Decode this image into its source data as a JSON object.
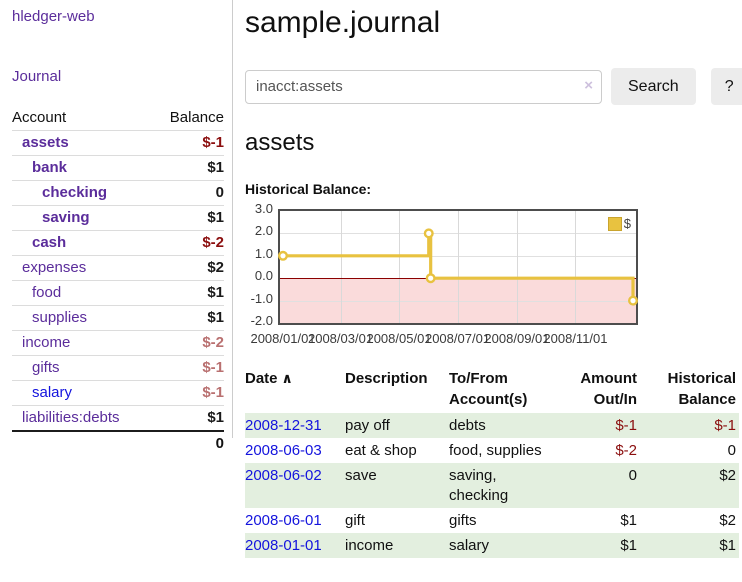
{
  "colors": {
    "link_purple": "#5b2d9b",
    "link_blue": "#1414dd",
    "negative_strong": "#8b0e0e",
    "negative_soft": "#b97070",
    "row_green": "#e3efdf",
    "series_gold": "#e8c240",
    "negative_region_pink": "#fadbdb",
    "zero_line_red": "#8b0000",
    "button_gray": "#ececec"
  },
  "sidebar": {
    "app_title": "hledger-web",
    "journal_link": "Journal",
    "table": {
      "account_header": "Account",
      "balance_header": "Balance",
      "rows": [
        {
          "name": "assets",
          "depth": 1,
          "bold": true,
          "balance": "$-1",
          "balance_color": "negative-strong",
          "link_color": "purple"
        },
        {
          "name": "bank",
          "depth": 2,
          "bold": true,
          "balance": "$1",
          "balance_color": "default",
          "link_color": "purple"
        },
        {
          "name": "checking",
          "depth": 3,
          "bold": true,
          "balance": "0",
          "balance_color": "default",
          "link_color": "purple"
        },
        {
          "name": "saving",
          "depth": 3,
          "bold": true,
          "balance": "$1",
          "balance_color": "default",
          "link_color": "purple"
        },
        {
          "name": "cash",
          "depth": 2,
          "bold": true,
          "balance": "$-2",
          "balance_color": "negative-strong",
          "link_color": "purple"
        },
        {
          "name": "expenses",
          "depth": 1,
          "bold": false,
          "balance": "$2",
          "balance_color": "default",
          "link_color": "purple"
        },
        {
          "name": "food",
          "depth": 2,
          "bold": false,
          "balance": "$1",
          "balance_color": "default",
          "link_color": "purple"
        },
        {
          "name": "supplies",
          "depth": 2,
          "bold": false,
          "balance": "$1",
          "balance_color": "default",
          "link_color": "purple"
        },
        {
          "name": "income",
          "depth": 1,
          "bold": false,
          "balance": "$-2",
          "balance_color": "negative-soft",
          "link_color": "purple"
        },
        {
          "name": "gifts",
          "depth": 2,
          "bold": false,
          "balance": "$-1",
          "balance_color": "negative-soft",
          "link_color": "purple"
        },
        {
          "name": "salary",
          "depth": 2,
          "bold": false,
          "balance": "$-1",
          "balance_color": "negative-soft",
          "link_color": "blue"
        },
        {
          "name": "liabilities:debts",
          "depth": 1,
          "bold": false,
          "balance": "$1",
          "balance_color": "default",
          "link_color": "purple"
        }
      ],
      "total": "0"
    }
  },
  "main": {
    "title": "sample.journal",
    "search": {
      "query": "inacct:assets",
      "clear_icon": "×",
      "search_button": "Search",
      "help_button": "?"
    },
    "account_heading": "assets",
    "chart_label": "Historical Balance:",
    "chart_data": {
      "type": "line",
      "step": true,
      "series": [
        {
          "name": "$",
          "color": "#e8c240",
          "points": [
            [
              "2008-01-01",
              1.0
            ],
            [
              "2008-06-01",
              2.0
            ],
            [
              "2008-06-03",
              0.0
            ],
            [
              "2008-12-31",
              -1.0
            ]
          ]
        }
      ],
      "xrange": [
        "2008-01-01",
        "2008-12-31"
      ],
      "ylim": [
        -2.0,
        3.0
      ],
      "y_ticks": [
        {
          "label": "3.0",
          "value": 3
        },
        {
          "label": "2.0",
          "value": 2
        },
        {
          "label": "1.0",
          "value": 1
        },
        {
          "label": "0.0",
          "value": 0
        },
        {
          "label": "-1.0",
          "value": -1
        },
        {
          "label": "-2.0",
          "value": -2
        }
      ],
      "x_ticks": [
        {
          "label": "2008/01/01",
          "date": "2008-01-01"
        },
        {
          "label": "2008/03/01",
          "date": "2008-03-01"
        },
        {
          "label": "2008/05/01",
          "date": "2008-05-01"
        },
        {
          "label": "2008/07/01",
          "date": "2008-07-01"
        },
        {
          "label": "2008/09/01",
          "date": "2008-09-01"
        },
        {
          "label": "2008/11/01",
          "date": "2008-11-01"
        }
      ],
      "legend": {
        "label": "$",
        "position": "top-right"
      },
      "grid": true,
      "negative_region_shaded": true
    },
    "register": {
      "headers": [
        "Date",
        "Description",
        "To/From Account(s)",
        "Amount Out/In",
        "Historical Balance"
      ],
      "sort_icon": "∧",
      "rows": [
        {
          "date": "2008-12-31",
          "description": "pay off",
          "accounts": "debts",
          "amount": "$-1",
          "amount_negative": true,
          "balance": "$-1",
          "balance_negative": true
        },
        {
          "date": "2008-06-03",
          "description": "eat & shop",
          "accounts": "food, supplies",
          "amount": "$-2",
          "amount_negative": true,
          "balance": "0",
          "balance_negative": false
        },
        {
          "date": "2008-06-02",
          "description": "save",
          "accounts": "saving, checking",
          "amount": "0",
          "amount_negative": false,
          "balance": "$2",
          "balance_negative": false
        },
        {
          "date": "2008-06-01",
          "description": "gift",
          "accounts": "gifts",
          "amount": "$1",
          "amount_negative": false,
          "balance": "$2",
          "balance_negative": false
        },
        {
          "date": "2008-01-01",
          "description": "income",
          "accounts": "salary",
          "amount": "$1",
          "amount_negative": false,
          "balance": "$1",
          "balance_negative": false
        }
      ]
    }
  }
}
